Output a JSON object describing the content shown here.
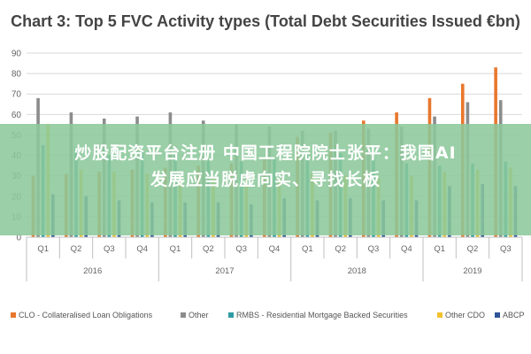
{
  "chart_data": {
    "type": "bar",
    "title": "Chart 3: Top 5 FVC Activity types (Total Debt Securities Issued €bn)",
    "xlabel": "",
    "ylabel": "",
    "ylim": [
      0,
      90
    ],
    "yticks": [
      0,
      10,
      20,
      30,
      40,
      50,
      60,
      70,
      80,
      90
    ],
    "grid": true,
    "legend_position": "bottom",
    "categories": [
      "Q1",
      "Q2",
      "Q3",
      "Q4",
      "Q1",
      "Q2",
      "Q3",
      "Q4",
      "Q1",
      "Q2",
      "Q3",
      "Q4",
      "Q1",
      "Q2",
      "Q3"
    ],
    "year_groups": [
      {
        "label": "2016",
        "quarters": 4
      },
      {
        "label": "2017",
        "quarters": 4
      },
      {
        "label": "2018",
        "quarters": 4
      },
      {
        "label": "2019",
        "quarters": 3
      }
    ],
    "series": [
      {
        "name": "CLO - Collateralised Loan Obligations",
        "color": "#E8772E",
        "values": [
          30,
          31,
          32,
          33,
          34,
          35,
          36,
          38,
          49,
          51,
          57,
          61,
          68,
          75,
          83
        ]
      },
      {
        "name": "Other",
        "color": "#8C8C8C",
        "values": [
          68,
          61,
          58,
          59,
          61,
          57,
          55,
          54,
          52,
          52,
          53,
          54,
          59,
          66,
          67
        ]
      },
      {
        "name": "RMBS - Residential Mortgage Backed Securities",
        "color": "#2E9BA3",
        "values": [
          45,
          44,
          40,
          42,
          40,
          38,
          37,
          38,
          40,
          41,
          38,
          36,
          35,
          36,
          37
        ]
      },
      {
        "name": "Other CDO",
        "color": "#F2C12E",
        "values": [
          55,
          33,
          32,
          31,
          30,
          29,
          28,
          29,
          31,
          30,
          29,
          30,
          32,
          33,
          34
        ]
      },
      {
        "name": "ABCP",
        "color": "#2F5597",
        "values": [
          21,
          20,
          18,
          17,
          17,
          17,
          16,
          19,
          18,
          19,
          18,
          18,
          25,
          26,
          25
        ]
      }
    ]
  },
  "overlay": {
    "line1": "炒股配资平台注册 中国工程院院士张平：我国AI",
    "line2": "发展应当脱虚向实、寻找长板"
  }
}
